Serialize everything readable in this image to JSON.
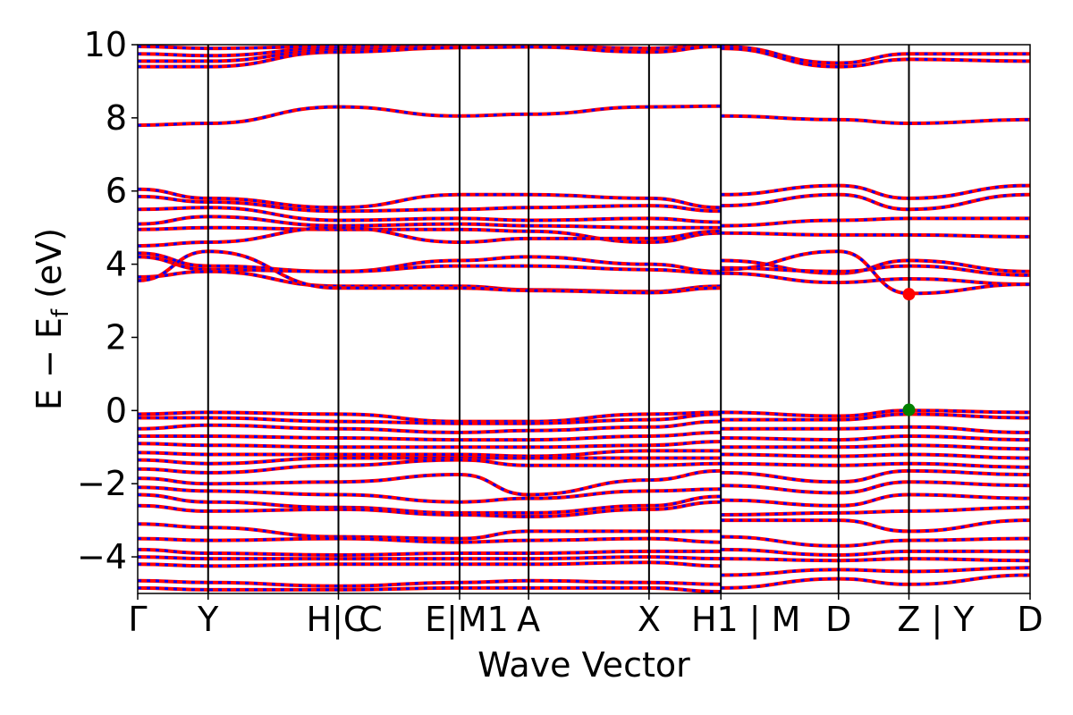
{
  "chart_data": {
    "type": "line",
    "title": "",
    "xlabel": "Wave Vector",
    "ylabel": "E − E_f (eV)",
    "ylabel_parts": {
      "main": "E − E",
      "sub": "f",
      "unit": " (eV)"
    },
    "ylim": [
      -5,
      10
    ],
    "yticks": [
      10,
      8,
      6,
      4,
      2,
      0,
      -2,
      -4
    ],
    "ytick_labels": [
      "10",
      "8",
      "6",
      "4",
      "2",
      "0",
      "−2",
      "−4"
    ],
    "grid": false,
    "legend": "none",
    "colors": {
      "band_primary": "#ff0000",
      "band_dash": "#0000ff",
      "vbm": "#008000",
      "cbm": "#ff0000"
    },
    "kpath_positions": [
      0,
      0.1,
      0.285,
      0.457,
      0.555,
      0.726,
      0.828,
      0.995,
      1.095,
      1.267
    ],
    "ktick_labels": [
      "Γ",
      "Y",
      "H|C",
      "C",
      "E|M1",
      "A",
      "X",
      "H1 | M",
      "D",
      "Z | Y",
      "D"
    ],
    "ktick_display": [
      {
        "pos": 0.0,
        "text": "Γ"
      },
      {
        "pos": 0.1,
        "text": "Y"
      },
      {
        "pos": 0.285,
        "text": "H|C"
      },
      {
        "pos": 0.285,
        "text": "C"
      },
      {
        "pos": 0.457,
        "text": "E|M1"
      },
      {
        "pos": 0.555,
        "text": "A"
      },
      {
        "pos": 0.726,
        "text": "X"
      },
      {
        "pos": 0.828,
        "text": "H1 | M"
      },
      {
        "pos": 0.995,
        "text": "D"
      },
      {
        "pos": 1.095,
        "text": "Z | Y"
      },
      {
        "pos": 1.267,
        "text": "D"
      }
    ],
    "series": [
      {
        "x": [
          0,
          0.1,
          0.285,
          0.457,
          0.555,
          0.726,
          0.828
        ],
        "values": [
          9.95,
          9.9,
          9.95,
          9.98,
          9.98,
          9.9,
          10.0
        ]
      },
      {
        "x": [
          0,
          0.1,
          0.285,
          0.457,
          0.555,
          0.726,
          0.828
        ],
        "values": [
          9.75,
          9.7,
          9.9,
          9.95,
          9.97,
          9.85,
          9.98
        ]
      },
      {
        "x": [
          0,
          0.1,
          0.285,
          0.457,
          0.555,
          0.726,
          0.828
        ],
        "values": [
          9.55,
          9.55,
          9.85,
          9.93,
          9.95,
          9.82,
          9.96
        ]
      },
      {
        "x": [
          0,
          0.1,
          0.285,
          0.457,
          0.555,
          0.726,
          0.828
        ],
        "values": [
          9.4,
          9.4,
          9.8,
          9.92,
          9.94,
          9.8,
          9.95
        ]
      },
      {
        "x": [
          0,
          0.1,
          0.285,
          0.457,
          0.555,
          0.726,
          0.828
        ],
        "values": [
          7.8,
          7.85,
          8.3,
          8.05,
          8.1,
          8.3,
          8.32
        ]
      },
      {
        "x": [
          0,
          0.1,
          0.285,
          0.457,
          0.555,
          0.726,
          0.828
        ],
        "values": [
          6.05,
          5.8,
          5.55,
          5.9,
          5.9,
          5.8,
          5.55
        ]
      },
      {
        "x": [
          0,
          0.1,
          0.285,
          0.457,
          0.555,
          0.726,
          0.828
        ],
        "values": [
          5.85,
          5.7,
          5.45,
          5.5,
          5.55,
          5.6,
          5.45
        ]
      },
      {
        "x": [
          0,
          0.1,
          0.285,
          0.457,
          0.555,
          0.726,
          0.828
        ],
        "values": [
          5.5,
          5.55,
          5.2,
          5.25,
          5.2,
          5.25,
          5.15
        ]
      },
      {
        "x": [
          0,
          0.1,
          0.285,
          0.457,
          0.555,
          0.726,
          0.828
        ],
        "values": [
          5.1,
          5.3,
          5.05,
          5.1,
          5.05,
          5.0,
          5.0
        ]
      },
      {
        "x": [
          0,
          0.1,
          0.285,
          0.457,
          0.555,
          0.726,
          0.828
        ],
        "values": [
          4.95,
          5.0,
          4.95,
          4.95,
          4.9,
          4.6,
          4.85
        ]
      },
      {
        "x": [
          0,
          0.1,
          0.285,
          0.457,
          0.555,
          0.726,
          0.828
        ],
        "values": [
          4.5,
          4.6,
          5.0,
          4.6,
          4.7,
          4.7,
          4.9
        ]
      },
      {
        "x": [
          0,
          0.1,
          0.285,
          0.457,
          0.555,
          0.726,
          0.828
        ],
        "values": [
          4.3,
          3.95,
          3.8,
          4.1,
          4.2,
          4.0,
          3.8
        ]
      },
      {
        "x": [
          0,
          0.1,
          0.285,
          0.457,
          0.555,
          0.726,
          0.828
        ],
        "values": [
          4.2,
          3.85,
          3.8,
          3.95,
          3.95,
          3.85,
          3.75
        ]
      },
      {
        "x": [
          0,
          0.1,
          0.285,
          0.457,
          0.555,
          0.726,
          0.828
        ],
        "values": [
          3.65,
          3.8,
          3.4,
          3.4,
          3.3,
          3.25,
          3.4
        ]
      },
      {
        "x": [
          0,
          0.1,
          0.285,
          0.457,
          0.555,
          0.726,
          0.828
        ],
        "values": [
          3.55,
          4.35,
          3.35,
          3.35,
          3.28,
          3.22,
          3.35
        ]
      },
      {
        "x": [
          0.828,
          0.995,
          1.095,
          1.267
        ],
        "values": [
          9.95,
          9.5,
          9.75,
          9.75
        ]
      },
      {
        "x": [
          0.828,
          0.995,
          1.095,
          1.267
        ],
        "values": [
          9.9,
          9.4,
          9.6,
          9.55
        ]
      },
      {
        "x": [
          0.828,
          0.995,
          1.095,
          1.267
        ],
        "values": [
          8.05,
          7.95,
          7.85,
          7.95
        ]
      },
      {
        "x": [
          0.828,
          0.995,
          1.095,
          1.267
        ],
        "values": [
          5.9,
          6.15,
          5.8,
          6.15
        ]
      },
      {
        "x": [
          0.828,
          0.995,
          1.095,
          1.267
        ],
        "values": [
          5.6,
          5.9,
          5.5,
          5.9
        ]
      },
      {
        "x": [
          0.828,
          0.995,
          1.095,
          1.267
        ],
        "values": [
          5.05,
          5.2,
          5.25,
          5.25
        ]
      },
      {
        "x": [
          0.828,
          0.995,
          1.095,
          1.267
        ],
        "values": [
          4.85,
          4.8,
          4.8,
          4.75
        ]
      },
      {
        "x": [
          0.828,
          0.995,
          1.095,
          1.267
        ],
        "values": [
          4.1,
          3.75,
          4.1,
          3.8
        ]
      },
      {
        "x": [
          0.828,
          0.995,
          1.095,
          1.267
        ],
        "values": [
          3.9,
          3.8,
          3.95,
          3.7
        ]
      },
      {
        "x": [
          0.828,
          0.995,
          1.095,
          1.267
        ],
        "values": [
          3.75,
          3.5,
          3.6,
          3.45
        ]
      },
      {
        "x": [
          0.828,
          0.995,
          1.095,
          1.267
        ],
        "values": [
          3.85,
          4.35,
          3.2,
          3.45
        ]
      },
      {
        "x": [
          0,
          0.1,
          0.285,
          0.457,
          0.555,
          0.726,
          0.828
        ],
        "values": [
          -0.1,
          -0.05,
          -0.1,
          -0.3,
          -0.3,
          -0.1,
          -0.05
        ]
      },
      {
        "x": [
          0,
          0.1,
          0.285,
          0.457,
          0.555,
          0.726,
          0.828
        ],
        "values": [
          -0.2,
          -0.2,
          -0.3,
          -0.35,
          -0.35,
          -0.25,
          -0.1
        ]
      },
      {
        "x": [
          0,
          0.1,
          0.285,
          0.457,
          0.555,
          0.726,
          0.828
        ],
        "values": [
          -0.5,
          -0.4,
          -0.5,
          -0.6,
          -0.55,
          -0.45,
          -0.3
        ]
      },
      {
        "x": [
          0,
          0.1,
          0.285,
          0.457,
          0.555,
          0.726,
          0.828
        ],
        "values": [
          -0.7,
          -0.7,
          -0.75,
          -0.8,
          -0.8,
          -0.7,
          -0.6
        ]
      },
      {
        "x": [
          0,
          0.1,
          0.285,
          0.457,
          0.555,
          0.726,
          0.828
        ],
        "values": [
          -0.9,
          -0.95,
          -1.0,
          -1.0,
          -1.0,
          -0.95,
          -0.85
        ]
      },
      {
        "x": [
          0,
          0.1,
          0.285,
          0.457,
          0.555,
          0.726,
          0.828
        ],
        "values": [
          -1.15,
          -1.2,
          -1.2,
          -1.2,
          -1.25,
          -1.1,
          -1.1
        ]
      },
      {
        "x": [
          0,
          0.1,
          0.285,
          0.457,
          0.555,
          0.726,
          0.828
        ],
        "values": [
          -1.35,
          -1.45,
          -1.3,
          -1.3,
          -1.3,
          -1.3,
          -1.3
        ]
      },
      {
        "x": [
          0,
          0.1,
          0.285,
          0.457,
          0.555,
          0.726,
          0.828
        ],
        "values": [
          -1.6,
          -1.7,
          -1.5,
          -1.35,
          -1.5,
          -1.5,
          -1.45
        ]
      },
      {
        "x": [
          0,
          0.1,
          0.285,
          0.457,
          0.555,
          0.726,
          0.828
        ],
        "values": [
          -1.85,
          -2.0,
          -1.95,
          -1.75,
          -2.3,
          -1.9,
          -1.65
        ]
      },
      {
        "x": [
          0,
          0.1,
          0.285,
          0.457,
          0.555,
          0.726,
          0.828
        ],
        "values": [
          -2.1,
          -2.2,
          -2.3,
          -2.5,
          -2.4,
          -2.2,
          -2.15
        ]
      },
      {
        "x": [
          0,
          0.1,
          0.285,
          0.457,
          0.555,
          0.726,
          0.828
        ],
        "values": [
          -2.3,
          -2.5,
          -2.65,
          -2.8,
          -2.8,
          -2.6,
          -2.35
        ]
      },
      {
        "x": [
          0,
          0.1,
          0.285,
          0.457,
          0.555,
          0.726,
          0.828
        ],
        "values": [
          -2.6,
          -2.75,
          -2.7,
          -2.85,
          -2.9,
          -2.7,
          -2.5
        ]
      },
      {
        "x": [
          0,
          0.1,
          0.285,
          0.457,
          0.555,
          0.726,
          0.828
        ],
        "values": [
          -3.1,
          -3.2,
          -3.45,
          -3.5,
          -3.3,
          -3.3,
          -3.3
        ]
      },
      {
        "x": [
          0,
          0.1,
          0.285,
          0.457,
          0.555,
          0.726,
          0.828
        ],
        "values": [
          -3.5,
          -3.55,
          -3.5,
          -3.6,
          -3.55,
          -3.5,
          -3.6
        ]
      },
      {
        "x": [
          0,
          0.1,
          0.285,
          0.457,
          0.555,
          0.726,
          0.828
        ],
        "values": [
          -3.8,
          -3.9,
          -3.95,
          -3.9,
          -3.9,
          -3.85,
          -3.85
        ]
      },
      {
        "x": [
          0,
          0.1,
          0.285,
          0.457,
          0.555,
          0.726,
          0.828
        ],
        "values": [
          -4.0,
          -4.05,
          -4.05,
          -4.05,
          -4.05,
          -4.0,
          -4.05
        ]
      },
      {
        "x": [
          0,
          0.1,
          0.285,
          0.457,
          0.555,
          0.726,
          0.828
        ],
        "values": [
          -4.2,
          -4.25,
          -4.2,
          -4.2,
          -4.2,
          -4.15,
          -4.25
        ]
      },
      {
        "x": [
          0,
          0.1,
          0.285,
          0.457,
          0.555,
          0.726,
          0.828
        ],
        "values": [
          -4.65,
          -4.7,
          -4.8,
          -4.7,
          -4.65,
          -4.7,
          -4.75
        ]
      },
      {
        "x": [
          0,
          0.1,
          0.285,
          0.457,
          0.555,
          0.726,
          0.828
        ],
        "values": [
          -4.85,
          -4.9,
          -4.9,
          -4.85,
          -4.85,
          -4.85,
          -4.95
        ]
      },
      {
        "x": [
          0.828,
          0.995,
          1.095,
          1.267
        ],
        "values": [
          -0.05,
          -0.15,
          0.0,
          -0.05
        ]
      },
      {
        "x": [
          0.828,
          0.995,
          1.095,
          1.267
        ],
        "values": [
          -0.25,
          -0.25,
          -0.1,
          -0.2
        ]
      },
      {
        "x": [
          0.828,
          0.995,
          1.095,
          1.267
        ],
        "values": [
          -0.5,
          -0.5,
          -0.45,
          -0.6
        ]
      },
      {
        "x": [
          0.828,
          0.995,
          1.095,
          1.267
        ],
        "values": [
          -0.75,
          -0.8,
          -0.7,
          -0.8
        ]
      },
      {
        "x": [
          0.828,
          0.995,
          1.095,
          1.267
        ],
        "values": [
          -1.0,
          -1.0,
          -0.95,
          -1.05
        ]
      },
      {
        "x": [
          0.828,
          0.995,
          1.095,
          1.267
        ],
        "values": [
          -1.2,
          -1.25,
          -1.2,
          -1.3
        ]
      },
      {
        "x": [
          0.828,
          0.995,
          1.095,
          1.267
        ],
        "values": [
          -1.45,
          -1.5,
          -1.45,
          -1.55
        ]
      },
      {
        "x": [
          0.828,
          0.995,
          1.095,
          1.267
        ],
        "values": [
          -1.7,
          -1.95,
          -1.65,
          -1.75
        ]
      },
      {
        "x": [
          0.828,
          0.995,
          1.095,
          1.267
        ],
        "values": [
          -2.05,
          -2.25,
          -1.95,
          -2.05
        ]
      },
      {
        "x": [
          0.828,
          0.995,
          1.095,
          1.267
        ],
        "values": [
          -2.45,
          -2.6,
          -2.3,
          -2.4
        ]
      },
      {
        "x": [
          0.828,
          0.995,
          1.095,
          1.267
        ],
        "values": [
          -2.85,
          -2.8,
          -2.75,
          -2.65
        ]
      },
      {
        "x": [
          0.828,
          0.995,
          1.095,
          1.267
        ],
        "values": [
          -3.0,
          -3.0,
          -3.3,
          -3.0
        ]
      },
      {
        "x": [
          0.828,
          0.995,
          1.095,
          1.267
        ],
        "values": [
          -3.45,
          -3.7,
          -3.55,
          -3.5
        ]
      },
      {
        "x": [
          0.828,
          0.995,
          1.095,
          1.267
        ],
        "values": [
          -3.8,
          -3.95,
          -3.85,
          -3.85
        ]
      },
      {
        "x": [
          0.828,
          0.995,
          1.095,
          1.267
        ],
        "values": [
          -4.05,
          -4.1,
          -4.05,
          -4.1
        ]
      },
      {
        "x": [
          0.828,
          0.995,
          1.095,
          1.267
        ],
        "values": [
          -4.5,
          -4.35,
          -4.4,
          -4.3
        ]
      },
      {
        "x": [
          0.828,
          0.995,
          1.095,
          1.267
        ],
        "values": [
          -4.85,
          -4.6,
          -4.75,
          -4.5
        ]
      }
    ],
    "markers": [
      {
        "name": "cbm-marker",
        "x": 1.095,
        "y": 3.18,
        "color": "#ff0000"
      },
      {
        "name": "vbm-marker",
        "x": 1.095,
        "y": 0.02,
        "color": "#008000"
      }
    ]
  }
}
